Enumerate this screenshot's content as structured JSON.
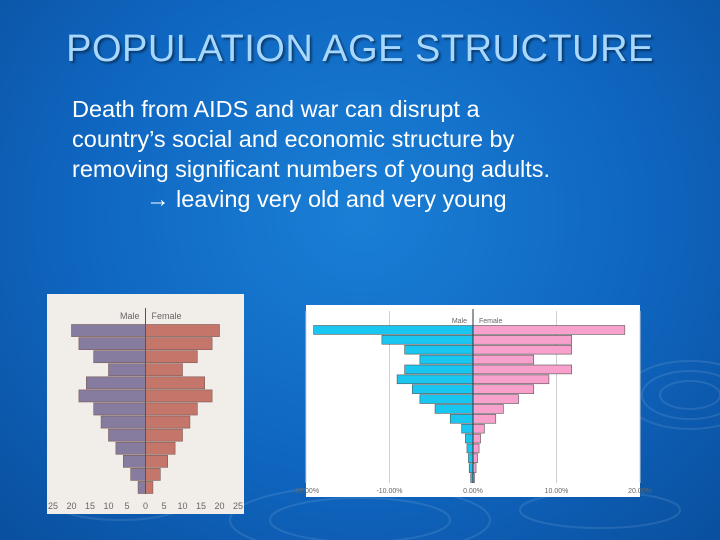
{
  "slide": {
    "title": "POPULATION AGE STRUCTURE",
    "body_lines": [
      "Death from AIDS  and war can disrupt a",
      "country’s social and economic structure by",
      "removing significant numbers of young adults.",
      "→ leaving very old and very young"
    ]
  },
  "colors": {
    "title": "#a9d8ff",
    "background": "#1273cc",
    "male_left": "#857ca0",
    "female_left": "#c5766a",
    "male_right": "#19c6f0",
    "female_right": "#f7a1cc"
  },
  "chart_data": [
    {
      "type": "bar",
      "orientation": "horizontal-pyramid",
      "legend": [
        "Male",
        "Female"
      ],
      "xticks": [
        "25",
        "20",
        "15",
        "10",
        "5",
        "0",
        "5",
        "10",
        "15",
        "20",
        "25"
      ],
      "xlim": [
        -25,
        25
      ],
      "series": [
        {
          "name": "Male",
          "values": [
            2,
            4,
            6,
            8,
            10,
            12,
            14,
            18,
            16,
            10,
            14,
            18,
            20
          ]
        },
        {
          "name": "Female",
          "values": [
            2,
            4,
            6,
            8,
            10,
            12,
            14,
            18,
            16,
            10,
            14,
            18,
            20
          ]
        }
      ]
    },
    {
      "type": "bar",
      "orientation": "horizontal-pyramid",
      "legend": [
        "Male",
        "Female"
      ],
      "xticks": [
        "-20.00%",
        "-10.00%",
        "0.00%",
        "10.00%",
        "20.00%"
      ],
      "xlim": [
        -22,
        22
      ],
      "series": [
        {
          "name": "Male",
          "values": [
            0.3,
            0.5,
            0.6,
            0.8,
            1,
            1.5,
            3,
            5,
            7,
            8,
            10,
            9,
            7,
            9,
            12,
            21
          ]
        },
        {
          "name": "Female",
          "values": [
            0.2,
            0.4,
            0.6,
            0.8,
            1,
            1.5,
            3,
            4,
            6,
            8,
            10,
            13,
            8,
            13,
            13,
            20
          ]
        }
      ]
    }
  ]
}
